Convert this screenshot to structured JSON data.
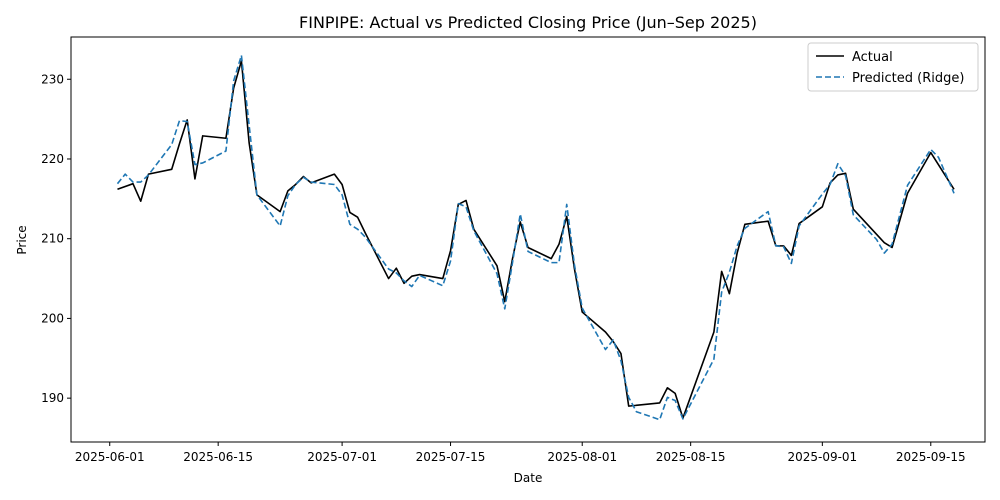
{
  "chart_data": {
    "type": "line",
    "title": "FINPIPE: Actual vs Predicted Closing Price (Jun–Sep 2025)",
    "xlabel": "Date",
    "ylabel": "Price",
    "xlim": [
      "2025-05-27",
      "2025-09-22"
    ],
    "ylim": [
      184.5,
      235.3
    ],
    "x_ticks": [
      "2025-06-01",
      "2025-06-15",
      "2025-07-01",
      "2025-07-15",
      "2025-08-01",
      "2025-08-15",
      "2025-09-01",
      "2025-09-15"
    ],
    "y_ticks": [
      190,
      200,
      210,
      220,
      230
    ],
    "legend": "top-right",
    "grid": false,
    "series": [
      {
        "name": "Actual",
        "color": "#000000",
        "style": "solid",
        "points": [
          [
            "2025-06-02",
            216.2
          ],
          [
            "2025-06-04",
            216.9
          ],
          [
            "2025-06-05",
            214.7
          ],
          [
            "2025-06-06",
            218.1
          ],
          [
            "2025-06-09",
            218.7
          ],
          [
            "2025-06-10",
            221.9
          ],
          [
            "2025-06-11",
            224.9
          ],
          [
            "2025-06-12",
            217.5
          ],
          [
            "2025-06-13",
            222.9
          ],
          [
            "2025-06-16",
            222.6
          ],
          [
            "2025-06-17",
            228.9
          ],
          [
            "2025-06-18",
            232.3
          ],
          [
            "2025-06-19",
            222.0
          ],
          [
            "2025-06-20",
            215.5
          ],
          [
            "2025-06-23",
            213.4
          ],
          [
            "2025-06-24",
            216.0
          ],
          [
            "2025-06-25",
            216.8
          ],
          [
            "2025-06-26",
            217.8
          ],
          [
            "2025-06-27",
            217.0
          ],
          [
            "2025-06-30",
            218.1
          ],
          [
            "2025-07-01",
            216.8
          ],
          [
            "2025-07-02",
            213.3
          ],
          [
            "2025-07-03",
            212.7
          ],
          [
            "2025-07-04",
            210.7
          ],
          [
            "2025-07-07",
            205.0
          ],
          [
            "2025-07-08",
            206.3
          ],
          [
            "2025-07-09",
            204.4
          ],
          [
            "2025-07-10",
            205.3
          ],
          [
            "2025-07-11",
            205.5
          ],
          [
            "2025-07-14",
            205.0
          ],
          [
            "2025-07-15",
            208.5
          ],
          [
            "2025-07-16",
            214.3
          ],
          [
            "2025-07-17",
            214.8
          ],
          [
            "2025-07-18",
            211.2
          ],
          [
            "2025-07-21",
            206.6
          ],
          [
            "2025-07-22",
            202.1
          ],
          [
            "2025-07-23",
            207.5
          ],
          [
            "2025-07-24",
            212.1
          ],
          [
            "2025-07-25",
            208.9
          ],
          [
            "2025-07-28",
            207.5
          ],
          [
            "2025-07-29",
            209.3
          ],
          [
            "2025-07-30",
            212.8
          ],
          [
            "2025-07-31",
            206.2
          ],
          [
            "2025-08-01",
            200.8
          ],
          [
            "2025-08-04",
            198.3
          ],
          [
            "2025-08-05",
            197.1
          ],
          [
            "2025-08-06",
            195.6
          ],
          [
            "2025-08-07",
            189.0
          ],
          [
            "2025-08-11",
            189.4
          ],
          [
            "2025-08-12",
            191.3
          ],
          [
            "2025-08-13",
            190.6
          ],
          [
            "2025-08-14",
            187.5
          ],
          [
            "2025-08-18",
            198.3
          ],
          [
            "2025-08-19",
            205.9
          ],
          [
            "2025-08-20",
            203.1
          ],
          [
            "2025-08-21",
            208.2
          ],
          [
            "2025-08-22",
            211.8
          ],
          [
            "2025-08-25",
            212.2
          ],
          [
            "2025-08-26",
            209.1
          ],
          [
            "2025-08-27",
            209.1
          ],
          [
            "2025-08-28",
            207.9
          ],
          [
            "2025-08-29",
            211.9
          ],
          [
            "2025-09-01",
            214.0
          ],
          [
            "2025-09-02",
            217.0
          ],
          [
            "2025-09-03",
            218.0
          ],
          [
            "2025-09-04",
            218.2
          ],
          [
            "2025-09-05",
            213.7
          ],
          [
            "2025-09-09",
            209.5
          ],
          [
            "2025-09-10",
            208.9
          ],
          [
            "2025-09-12",
            215.7
          ],
          [
            "2025-09-15",
            220.8
          ],
          [
            "2025-09-18",
            216.2
          ]
        ]
      },
      {
        "name": "Predicted (Ridge)",
        "color": "#1f77b4",
        "style": "dashed",
        "points": [
          [
            "2025-06-02",
            216.9
          ],
          [
            "2025-06-03",
            218.1
          ],
          [
            "2025-06-04",
            217.1
          ],
          [
            "2025-06-05",
            217.1
          ],
          [
            "2025-06-06",
            218.0
          ],
          [
            "2025-06-09",
            221.8
          ],
          [
            "2025-06-10",
            224.8
          ],
          [
            "2025-06-11",
            224.7
          ],
          [
            "2025-06-12",
            219.3
          ],
          [
            "2025-06-13",
            219.5
          ],
          [
            "2025-06-16",
            221.0
          ],
          [
            "2025-06-17",
            229.8
          ],
          [
            "2025-06-18",
            233.0
          ],
          [
            "2025-06-19",
            224.2
          ],
          [
            "2025-06-20",
            215.5
          ],
          [
            "2025-06-23",
            211.6
          ],
          [
            "2025-06-24",
            215.4
          ],
          [
            "2025-06-25",
            216.8
          ],
          [
            "2025-06-26",
            217.7
          ],
          [
            "2025-06-27",
            217.1
          ],
          [
            "2025-06-30",
            216.8
          ],
          [
            "2025-07-01",
            215.5
          ],
          [
            "2025-07-02",
            211.8
          ],
          [
            "2025-07-03",
            211.2
          ],
          [
            "2025-07-04",
            210.2
          ],
          [
            "2025-07-07",
            206.2
          ],
          [
            "2025-07-08",
            205.7
          ],
          [
            "2025-07-09",
            204.7
          ],
          [
            "2025-07-10",
            204.0
          ],
          [
            "2025-07-11",
            205.4
          ],
          [
            "2025-07-14",
            204.1
          ],
          [
            "2025-07-15",
            207.2
          ],
          [
            "2025-07-16",
            214.4
          ],
          [
            "2025-07-17",
            214.0
          ],
          [
            "2025-07-18",
            211.0
          ],
          [
            "2025-07-21",
            205.6
          ],
          [
            "2025-07-22",
            201.2
          ],
          [
            "2025-07-23",
            207.0
          ],
          [
            "2025-07-24",
            213.1
          ],
          [
            "2025-07-25",
            208.4
          ],
          [
            "2025-07-28",
            207.0
          ],
          [
            "2025-07-29",
            207.0
          ],
          [
            "2025-07-30",
            214.3
          ],
          [
            "2025-07-31",
            206.7
          ],
          [
            "2025-08-01",
            201.3
          ],
          [
            "2025-08-04",
            196.1
          ],
          [
            "2025-08-05",
            197.3
          ],
          [
            "2025-08-06",
            194.7
          ],
          [
            "2025-08-07",
            190.1
          ],
          [
            "2025-08-08",
            188.3
          ],
          [
            "2025-08-11",
            187.3
          ],
          [
            "2025-08-12",
            190.1
          ],
          [
            "2025-08-13",
            189.7
          ],
          [
            "2025-08-14",
            187.4
          ],
          [
            "2025-08-18",
            194.9
          ],
          [
            "2025-08-19",
            203.3
          ],
          [
            "2025-08-20",
            205.8
          ],
          [
            "2025-08-21",
            209.1
          ],
          [
            "2025-08-22",
            211.3
          ],
          [
            "2025-08-25",
            213.4
          ],
          [
            "2025-08-26",
            209.1
          ],
          [
            "2025-08-27",
            209.0
          ],
          [
            "2025-08-28",
            206.9
          ],
          [
            "2025-08-29",
            211.6
          ],
          [
            "2025-09-01",
            215.6
          ],
          [
            "2025-09-02",
            216.8
          ],
          [
            "2025-09-03",
            219.4
          ],
          [
            "2025-09-04",
            217.9
          ],
          [
            "2025-09-05",
            213.0
          ],
          [
            "2025-09-08",
            209.9
          ],
          [
            "2025-09-09",
            208.2
          ],
          [
            "2025-09-10",
            209.3
          ],
          [
            "2025-09-12",
            216.7
          ],
          [
            "2025-09-15",
            221.2
          ],
          [
            "2025-09-16",
            220.2
          ],
          [
            "2025-09-18",
            215.7
          ]
        ]
      }
    ]
  }
}
